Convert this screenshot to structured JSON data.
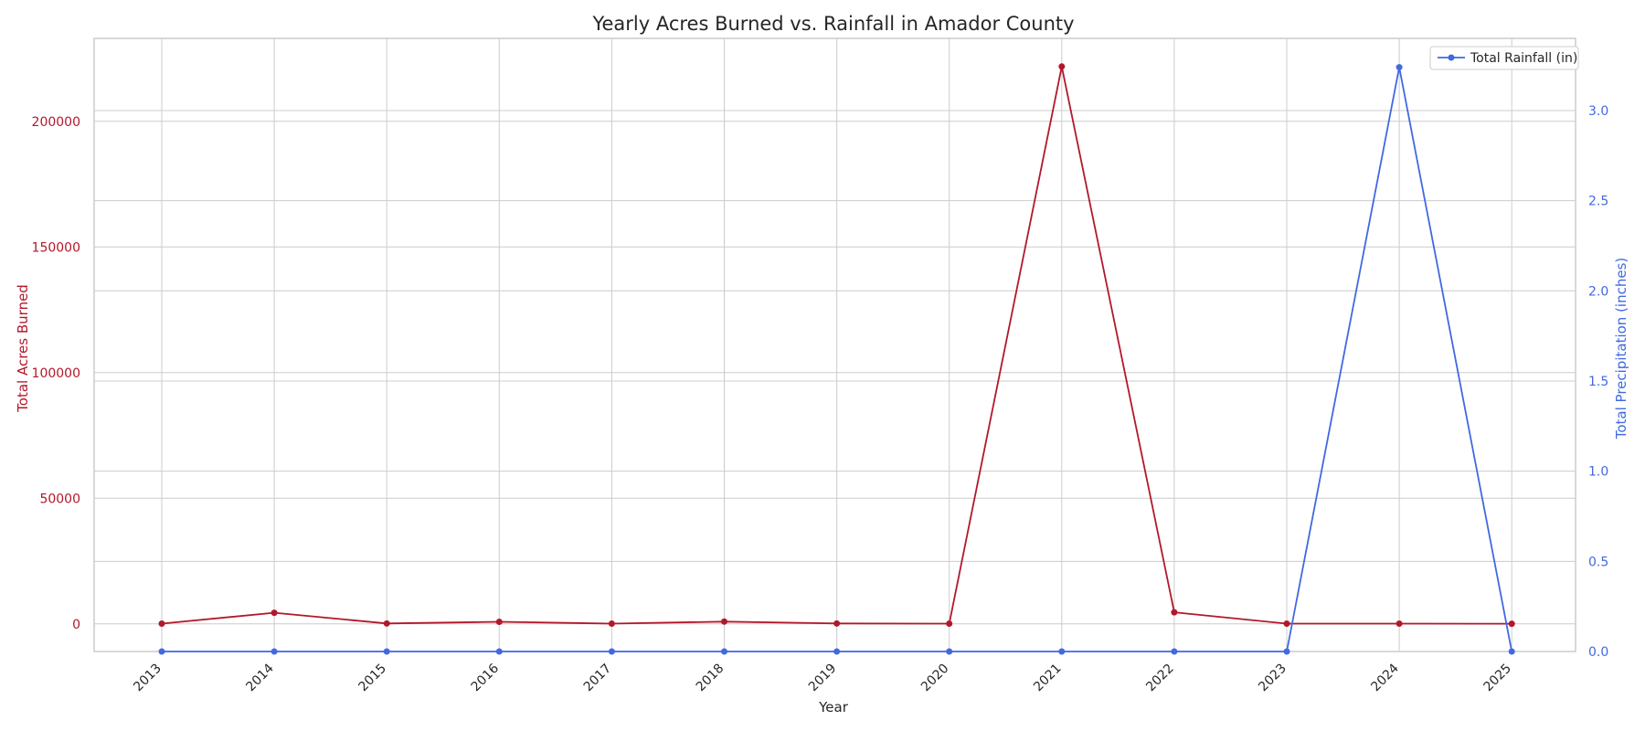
{
  "chart_data": {
    "type": "line",
    "title": "Yearly Acres Burned vs. Rainfall in Amador County",
    "xlabel": "Year",
    "ylabel_left": "Total Acres Burned",
    "ylabel_right": "Total Precipitation (inches)",
    "categories": [
      "2013",
      "2014",
      "2015",
      "2016",
      "2017",
      "2018",
      "2019",
      "2020",
      "2021",
      "2022",
      "2023",
      "2024",
      "2025"
    ],
    "ylim_left": [
      -11000,
      233000
    ],
    "yticks_left": [
      0,
      50000,
      100000,
      150000,
      200000
    ],
    "ylim_right": [
      0,
      3.4
    ],
    "yticks_right": [
      0.0,
      0.5,
      1.0,
      1.5,
      2.0,
      2.5,
      3.0
    ],
    "grid": true,
    "legend_position": "top-right",
    "legend": [
      "Total Rainfall (in)"
    ],
    "series": [
      {
        "name": "Total Acres Burned",
        "axis": "left",
        "color": "#b2182b",
        "values": [
          100,
          4400,
          150,
          800,
          100,
          900,
          150,
          100,
          221800,
          4600,
          100,
          100,
          50
        ]
      },
      {
        "name": "Total Rainfall (in)",
        "axis": "right",
        "color": "#4169e1",
        "values": [
          0,
          0,
          0,
          0,
          0,
          0,
          0,
          0,
          0,
          0,
          0,
          3.24,
          0
        ]
      }
    ]
  }
}
